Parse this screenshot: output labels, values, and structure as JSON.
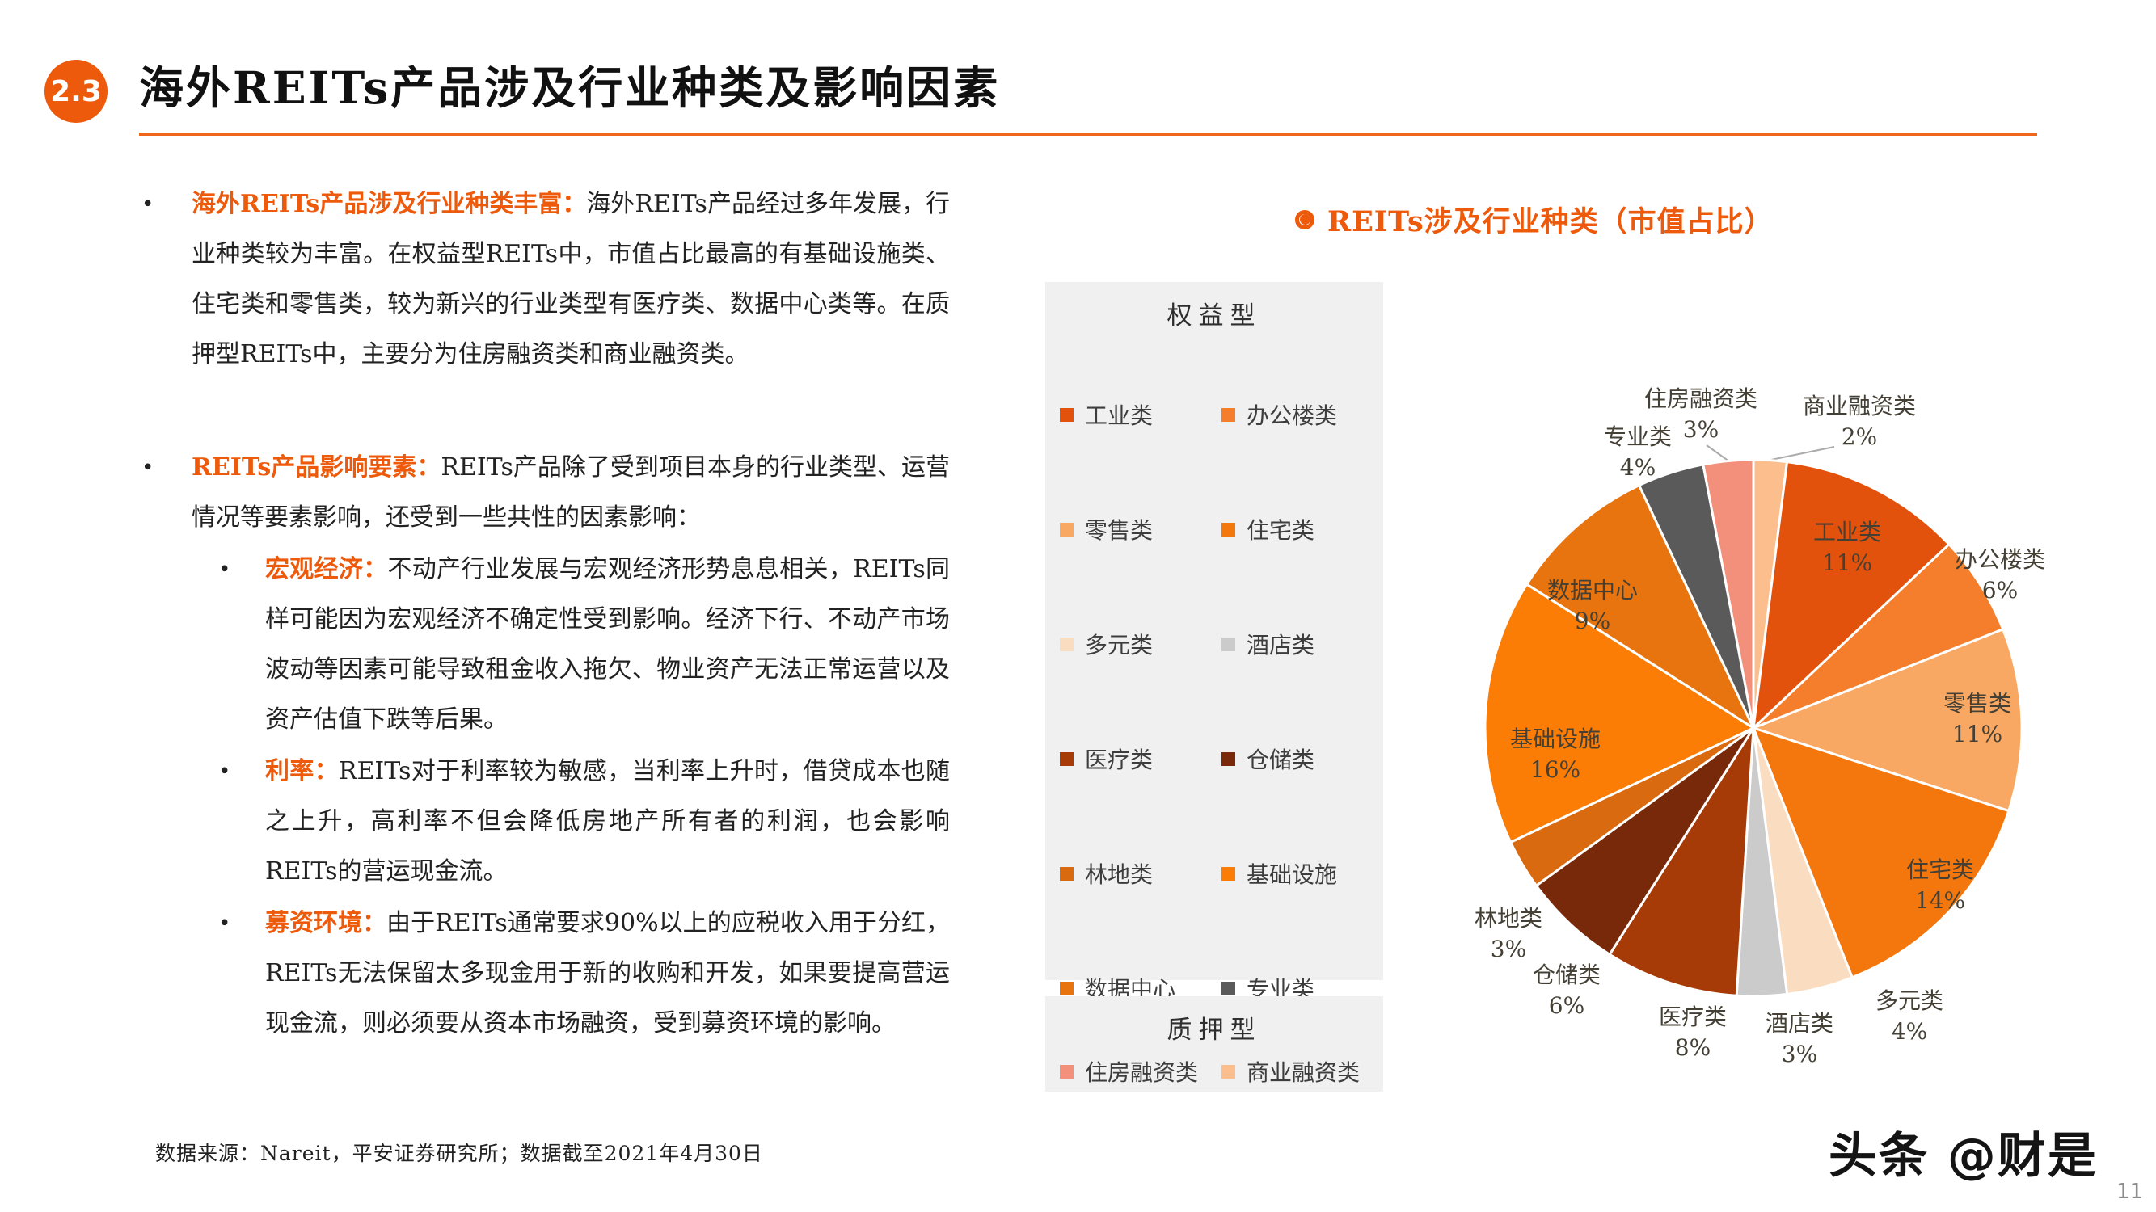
{
  "meta": {
    "page_number": "11",
    "watermark": "头条 @财是"
  },
  "colors": {
    "accent": "#ED5A0B",
    "legend_background": "#F0F0F0"
  },
  "header": {
    "section_number": "2.3",
    "title": "海外REITs产品涉及行业种类及影响因素"
  },
  "left_panel": {
    "bullets": [
      {
        "lead": "海外REITs产品涉及行业种类丰富：",
        "body": "海外REITs产品经过多年发展，行业种类较为丰富。在权益型REITs中，市值占比最高的有基础设施类、住宅类和零售类，较为新兴的行业类型有医疗类、数据中心类等。在质押型REITs中，主要分为住房融资类和商业融资类。"
      },
      {
        "lead": "REITs产品影响要素：",
        "body": "REITs产品除了受到项目本身的行业类型、运营情况等要素影响，还受到一些共性的因素影响："
      }
    ],
    "sub_bullets": [
      {
        "lead": "宏观经济：",
        "body": "不动产行业发展与宏观经济形势息息相关，REITs同样可能因为宏观经济不确定性受到影响。经济下行、不动产市场波动等因素可能导致租金收入拖欠、物业资产无法正常运营以及资产估值下跌等后果。"
      },
      {
        "lead": "利率：",
        "body": "REITs对于利率较为敏感，当利率上升时，借贷成本也随之上升，高利率不但会降低房地产所有者的利润，也会影响REITs的营运现金流。"
      },
      {
        "lead": "募资环境：",
        "body": "由于REITs通常要求90%以上的应税收入用于分红，REITs无法保留太多现金用于新的收购和开发，如果要提高营运现金流，则必须要从资本市场融资，受到募资环境的影响。"
      }
    ],
    "source_note": "数据来源：Nareit，平安证券研究所；数据截至2021年4月30日"
  },
  "chart": {
    "title": "REITs涉及行业种类（市值占比）",
    "equity_header": "权益型",
    "mortgage_header": "质押型",
    "equity_legend_indices": [
      1,
      2,
      3,
      4,
      5,
      6,
      7,
      8,
      9,
      10,
      11,
      12
    ],
    "mortgage_legend_indices": [
      13,
      0
    ]
  },
  "chart_data": {
    "type": "pie",
    "title": "REITs涉及行业种类（市值占比）",
    "unit": "%",
    "start_angle_deg": 0,
    "direction": "clockwise",
    "legend_position": "left",
    "slices": [
      {
        "name": "商业融资类",
        "value": 2,
        "label": "2%",
        "color": "#FBBE8C",
        "group": "质押型"
      },
      {
        "name": "工业类",
        "value": 11,
        "label": "11%",
        "color": "#E3520C",
        "group": "权益型"
      },
      {
        "name": "办公楼类",
        "value": 6,
        "label": "6%",
        "color": "#F57E2C",
        "group": "权益型"
      },
      {
        "name": "零售类",
        "value": 11,
        "label": "11%",
        "color": "#F9A863",
        "group": "权益型"
      },
      {
        "name": "住宅类",
        "value": 14,
        "label": "14%",
        "color": "#F4770E",
        "group": "权益型"
      },
      {
        "name": "多元类",
        "value": 4,
        "label": "4%",
        "color": "#FADCC0",
        "group": "权益型"
      },
      {
        "name": "酒店类",
        "value": 3,
        "label": "3%",
        "color": "#CBCBCB",
        "group": "权益型"
      },
      {
        "name": "医疗类",
        "value": 8,
        "label": "8%",
        "color": "#A63B08",
        "group": "权益型"
      },
      {
        "name": "仓储类",
        "value": 6,
        "label": "6%",
        "color": "#77290A",
        "group": "权益型"
      },
      {
        "name": "林地类",
        "value": 3,
        "label": "3%",
        "color": "#D96A10",
        "group": "权益型"
      },
      {
        "name": "基础设施",
        "value": 16,
        "label": "16%",
        "color": "#FB7D05",
        "group": "权益型"
      },
      {
        "name": "数据中心",
        "value": 9,
        "label": "9%",
        "color": "#E8740F",
        "group": "权益型"
      },
      {
        "name": "专业类",
        "value": 4,
        "label": "4%",
        "color": "#5A5A5A",
        "group": "权益型"
      },
      {
        "name": "住房融资类",
        "value": 3,
        "label": "3%",
        "color": "#F2907B",
        "group": "质押型"
      }
    ]
  }
}
